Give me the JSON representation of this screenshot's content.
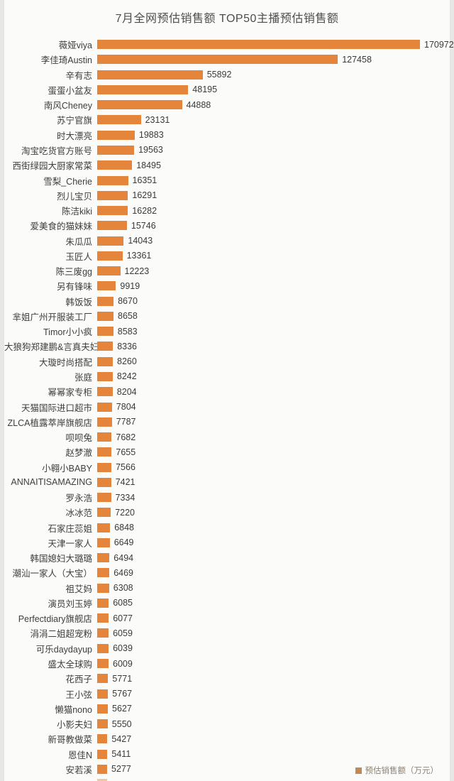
{
  "title": "7月全网预估销售额 TOP50主播预估销售额",
  "legend": {
    "label": "预估销售额（万元）"
  },
  "colors": {
    "bar": "#E5853C",
    "legend_swatch": "#C08A52",
    "background": "#FBFBF9",
    "page_edge": "#E7E7E5",
    "title_text": "#4D4D4D",
    "label_text": "#3E3E3E",
    "value_text": "#3A3A3A"
  },
  "chart_data": {
    "type": "bar",
    "orientation": "horizontal",
    "title": "7月全网预估销售额 TOP50主播预估销售额",
    "xlabel": "",
    "ylabel": "",
    "unit": "万元",
    "xlim": [
      0,
      180000
    ],
    "grid": false,
    "legend_position": "bottom-right",
    "legend_entries": [
      "预估销售额（万元）"
    ],
    "value_labels_shown": true,
    "partial_last_bar_visible": true,
    "categories": [
      "薇娅viya",
      "李佳琦Austin",
      "辛有志",
      "蛋蛋小盆友",
      "南风Cheney",
      "苏宁官旗",
      "时大漂亮",
      "淘宝吃货官方账号",
      "西街绿园大厨家常菜",
      "雪梨_Cherie",
      "烈儿宝贝",
      "陈洁kiki",
      "爱美食的猫妹妹",
      "朱瓜瓜",
      "玉匠人",
      "陈三废gg",
      "另有锋味",
      "韩饭饭",
      "芈姐广州开服装工厂",
      "Timor小小疯",
      "大狼狗郑建鹏&言真夫妇",
      "大璇时尚搭配",
      "张庭",
      "幂幂家专柜",
      "天猫国际进口超市",
      "ZLCA植露萃岸旗舰店",
      "呗呗兔",
      "赵梦澈",
      "小翱小BABY",
      "ANNAITISAMAZING",
      "罗永浩",
      "冰冰范",
      "石家庄蕊姐",
      "天津一家人",
      "韩国媳妇大璐璐",
      "潮汕一家人（大宝）",
      "祖艾妈",
      "演员刘玉婷",
      "Perfectdiary旗舰店",
      "涓涓二姐超宠粉",
      "可乐daydayup",
      "盛太全球购",
      "花西子",
      "王小弦",
      "懒猫nono",
      "小影夫妇",
      "新哥教做菜",
      "恩佳N",
      "安若溪"
    ],
    "values": [
      170972,
      127458,
      55892,
      48195,
      44888,
      23131,
      19883,
      19563,
      18495,
      16351,
      16291,
      16282,
      15746,
      14043,
      13361,
      12223,
      9919,
      8670,
      8658,
      8583,
      8336,
      8260,
      8242,
      8204,
      7804,
      7787,
      7682,
      7655,
      7566,
      7421,
      7334,
      7220,
      6848,
      6649,
      6494,
      6469,
      6308,
      6085,
      6077,
      6059,
      6039,
      6009,
      5771,
      5767,
      5627,
      5550,
      5427,
      5411,
      5277
    ]
  }
}
